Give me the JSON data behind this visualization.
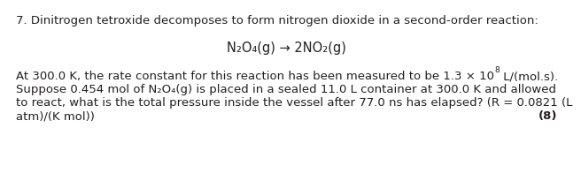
{
  "background_color": "#ffffff",
  "line1": "7. Dinitrogen tetroxide decomposes to form nitrogen dioxide in a second-order reaction:",
  "equation": "N₂O₄(g) → 2NO₂(g)",
  "line3a": "At 300.0 K, the rate constant for this reaction has been measured to be 1.3 × 10",
  "line3b": "8",
  "line3c": " L/(mol.s).",
  "line4": "Suppose 0.454 mol of N₂O₄(g) is placed in a sealed 11.0 L container at 300.0 K and allowed",
  "line5": "to react, what is the total pressure inside the vessel after 77.0 ns has elapsed? (R = 0.0821 (L",
  "line6a": "atm)/(K mol))",
  "line6b": "(8)",
  "text_color": "#231f20",
  "font_size_main": 9.5,
  "font_size_eq": 10.5,
  "font_size_sup": 6.5
}
